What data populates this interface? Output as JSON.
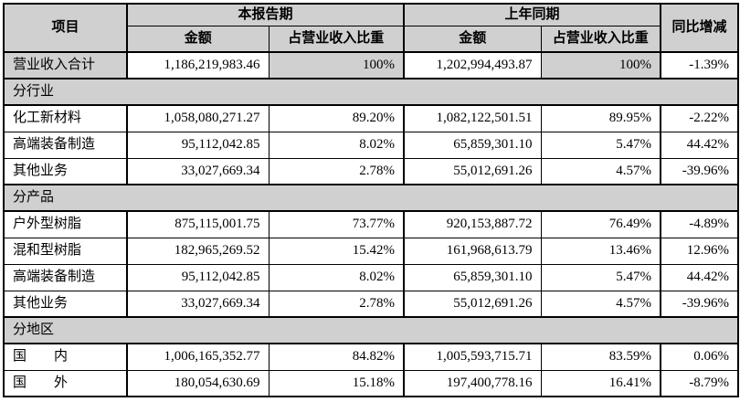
{
  "colors": {
    "header_bg": "#d0d0d0",
    "section_bg": "#d0d0d0",
    "shaded_bg": "#d0d0d0",
    "border": "#000000",
    "text": "#000000"
  },
  "table": {
    "header": {
      "item": "项目",
      "current_period": "本报告期",
      "prior_period": "上年同期",
      "yoy": "同比增减",
      "amount": "金额",
      "ratio": "占营业收入比重"
    },
    "rows": [
      {
        "type": "total",
        "label": "营业收入合计",
        "cur_amount": "1,186,219,983.46",
        "cur_ratio": "100%",
        "prior_amount": "1,202,994,493.87",
        "prior_ratio": "100%",
        "yoy": "-1.39%"
      },
      {
        "type": "section",
        "label": "分行业"
      },
      {
        "type": "data",
        "label": "化工新材料",
        "cur_amount": "1,058,080,271.27",
        "cur_ratio": "89.20%",
        "prior_amount": "1,082,122,501.51",
        "prior_ratio": "89.95%",
        "yoy": "-2.22%"
      },
      {
        "type": "data",
        "label": "高端装备制造",
        "cur_amount": "95,112,042.85",
        "cur_ratio": "8.02%",
        "prior_amount": "65,859,301.10",
        "prior_ratio": "5.47%",
        "yoy": "44.42%"
      },
      {
        "type": "data",
        "label": "其他业务",
        "cur_amount": "33,027,669.34",
        "cur_ratio": "2.78%",
        "prior_amount": "55,012,691.26",
        "prior_ratio": "4.57%",
        "yoy": "-39.96%"
      },
      {
        "type": "section",
        "label": "分产品"
      },
      {
        "type": "data",
        "label": "户外型树脂",
        "cur_amount": "875,115,001.75",
        "cur_ratio": "73.77%",
        "prior_amount": "920,153,887.72",
        "prior_ratio": "76.49%",
        "yoy": "-4.89%"
      },
      {
        "type": "data",
        "label": "混和型树脂",
        "cur_amount": "182,965,269.52",
        "cur_ratio": "15.42%",
        "prior_amount": "161,968,613.79",
        "prior_ratio": "13.46%",
        "yoy": "12.96%"
      },
      {
        "type": "data",
        "label": "高端装备制造",
        "cur_amount": "95,112,042.85",
        "cur_ratio": "8.02%",
        "prior_amount": "65,859,301.10",
        "prior_ratio": "5.47%",
        "yoy": "44.42%"
      },
      {
        "type": "data",
        "label": "其他业务",
        "cur_amount": "33,027,669.34",
        "cur_ratio": "2.78%",
        "prior_amount": "55,012,691.26",
        "prior_ratio": "4.57%",
        "yoy": "-39.96%"
      },
      {
        "type": "section",
        "label": "分地区"
      },
      {
        "type": "data",
        "label": "国　　内",
        "cur_amount": "1,006,165,352.77",
        "cur_ratio": "84.82%",
        "prior_amount": "1,005,593,715.71",
        "prior_ratio": "83.59%",
        "yoy": "0.06%"
      },
      {
        "type": "data",
        "label": "国　　外",
        "cur_amount": "180,054,630.69",
        "cur_ratio": "15.18%",
        "prior_amount": "197,400,778.16",
        "prior_ratio": "16.41%",
        "yoy": "-8.79%"
      }
    ]
  }
}
